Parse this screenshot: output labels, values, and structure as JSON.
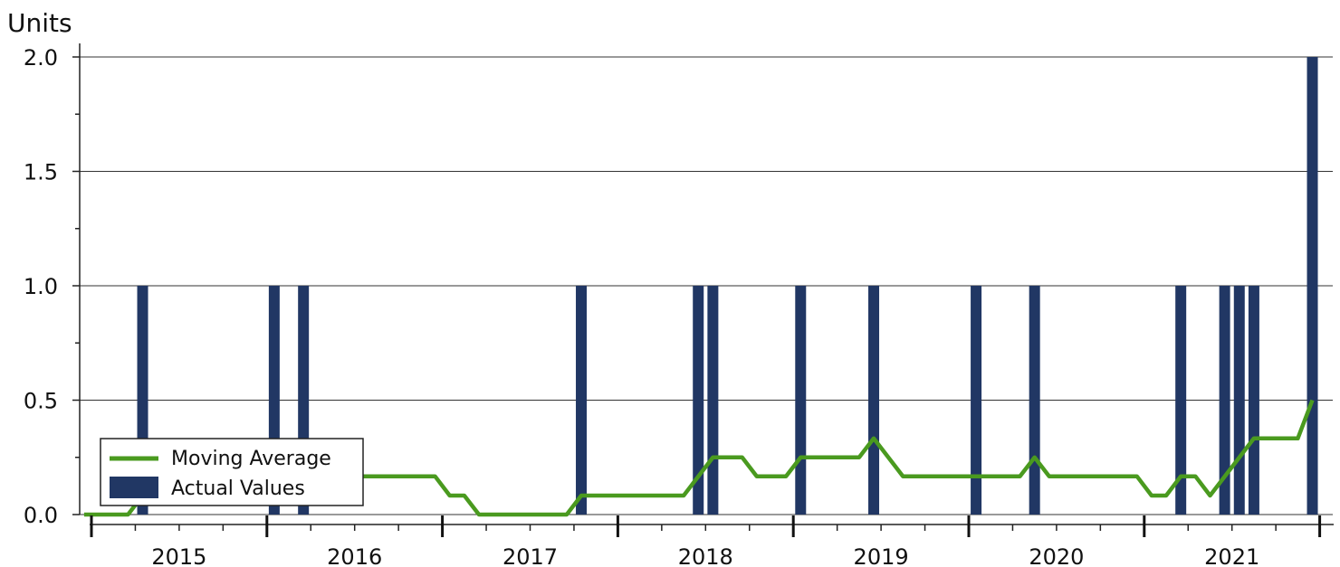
{
  "chart_data": {
    "type": "bar",
    "ylabel": "Units",
    "ylim": [
      0,
      2.0
    ],
    "yticks": [
      "0.0",
      "0.5",
      "1.0",
      "1.5",
      "2.0"
    ],
    "grid": true,
    "legend_position": "bottom-left",
    "x_start": "2015-01",
    "x_end": "2021-12",
    "xticks": [
      "2015",
      "2016",
      "2017",
      "2018",
      "2019",
      "2020",
      "2021"
    ],
    "colors": {
      "bars": "#213764",
      "line": "#4a9a1f"
    },
    "series": [
      {
        "name": "Actual Values",
        "type": "bar",
        "points": [
          {
            "x": "2015-05",
            "y": 1
          },
          {
            "x": "2016-02",
            "y": 1
          },
          {
            "x": "2016-04",
            "y": 1
          },
          {
            "x": "2017-11",
            "y": 1
          },
          {
            "x": "2018-07",
            "y": 1
          },
          {
            "x": "2018-08",
            "y": 1
          },
          {
            "x": "2019-02",
            "y": 1
          },
          {
            "x": "2019-07",
            "y": 1
          },
          {
            "x": "2020-02",
            "y": 1
          },
          {
            "x": "2020-06",
            "y": 1
          },
          {
            "x": "2021-04",
            "y": 1
          },
          {
            "x": "2021-07",
            "y": 1
          },
          {
            "x": "2021-08",
            "y": 1
          },
          {
            "x": "2021-09",
            "y": 1
          },
          {
            "x": "2022-01",
            "y": 2
          }
        ]
      },
      {
        "name": "Moving Average",
        "type": "line",
        "points": [
          {
            "x": "2015-01",
            "y": 0
          },
          {
            "x": "2015-04",
            "y": 0
          },
          {
            "x": "2015-05",
            "y": 0.083
          },
          {
            "x": "2016-02",
            "y": 0.167
          },
          {
            "x": "2016-04",
            "y": 0.25
          },
          {
            "x": "2016-05",
            "y": 0.167
          },
          {
            "x": "2017-01",
            "y": 0.167
          },
          {
            "x": "2017-02",
            "y": 0.083
          },
          {
            "x": "2017-03",
            "y": 0.083
          },
          {
            "x": "2017-04",
            "y": 0
          },
          {
            "x": "2017-10",
            "y": 0
          },
          {
            "x": "2017-11",
            "y": 0.083
          },
          {
            "x": "2018-06",
            "y": 0.083
          },
          {
            "x": "2018-08",
            "y": 0.25
          },
          {
            "x": "2018-10",
            "y": 0.25
          },
          {
            "x": "2018-11",
            "y": 0.167
          },
          {
            "x": "2019-01",
            "y": 0.167
          },
          {
            "x": "2019-02",
            "y": 0.25
          },
          {
            "x": "2019-06",
            "y": 0.25
          },
          {
            "x": "2019-07",
            "y": 0.333
          },
          {
            "x": "2019-09",
            "y": 0.167
          },
          {
            "x": "2020-05",
            "y": 0.167
          },
          {
            "x": "2020-06",
            "y": 0.25
          },
          {
            "x": "2020-07",
            "y": 0.167
          },
          {
            "x": "2021-01",
            "y": 0.167
          },
          {
            "x": "2021-02",
            "y": 0.083
          },
          {
            "x": "2021-03",
            "y": 0.083
          },
          {
            "x": "2021-04",
            "y": 0.167
          },
          {
            "x": "2021-05",
            "y": 0.167
          },
          {
            "x": "2021-06",
            "y": 0.083
          },
          {
            "x": "2021-09",
            "y": 0.333
          },
          {
            "x": "2021-12",
            "y": 0.333
          },
          {
            "x": "2022-01",
            "y": 0.5
          }
        ]
      }
    ]
  }
}
